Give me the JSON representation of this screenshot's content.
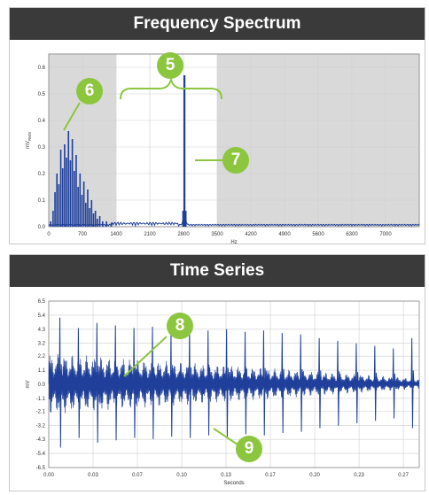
{
  "freq_panel": {
    "title": "Frequency Spectrum"
  },
  "time_panel": {
    "title": "Time Series"
  },
  "callouts": [
    {
      "id": "5",
      "label": "5"
    },
    {
      "id": "6",
      "label": "6"
    },
    {
      "id": "7",
      "label": "7"
    },
    {
      "id": "8",
      "label": "8"
    },
    {
      "id": "9",
      "label": "9"
    }
  ],
  "colors": {
    "header": "#3a3a3a",
    "trace": "#1f3f9a",
    "callout": "#8cc63f",
    "shade": "#d9d9d9"
  },
  "chart_data": [
    {
      "type": "line",
      "title": "Frequency Spectrum",
      "xlabel": "Hz",
      "ylabel": "mVₓₘₛ",
      "ylabel_main": "mV",
      "ylabel_sub": "RMS",
      "xlim": [
        0,
        7700
      ],
      "ylim": [
        0,
        0.65
      ],
      "xticks": [
        "0",
        "700",
        "1400",
        "2100",
        "2800",
        "3500",
        "4200",
        "4900",
        "5600",
        "6300",
        "7000"
      ],
      "xtick_values": [
        0,
        700,
        1400,
        2100,
        2800,
        3500,
        4200,
        4900,
        5600,
        6300,
        7000
      ],
      "yticks": [
        "0.0",
        "0.1",
        "0.2",
        "0.3",
        "0.4",
        "0.5",
        "0.6"
      ],
      "ytick_values": [
        0,
        0.1,
        0.2,
        0.3,
        0.4,
        0.5,
        0.6
      ],
      "shaded_ranges": [
        [
          0,
          1400
        ],
        [
          3500,
          7700
        ]
      ],
      "grid": true,
      "peaks": [
        {
          "x": 40,
          "y": 0.02
        },
        {
          "x": 90,
          "y": 0.06
        },
        {
          "x": 130,
          "y": 0.13
        },
        {
          "x": 170,
          "y": 0.2
        },
        {
          "x": 210,
          "y": 0.16
        },
        {
          "x": 250,
          "y": 0.29
        },
        {
          "x": 290,
          "y": 0.22
        },
        {
          "x": 330,
          "y": 0.31
        },
        {
          "x": 370,
          "y": 0.26
        },
        {
          "x": 410,
          "y": 0.36
        },
        {
          "x": 450,
          "y": 0.25
        },
        {
          "x": 490,
          "y": 0.33
        },
        {
          "x": 530,
          "y": 0.21
        },
        {
          "x": 570,
          "y": 0.27
        },
        {
          "x": 610,
          "y": 0.15
        },
        {
          "x": 650,
          "y": 0.2
        },
        {
          "x": 690,
          "y": 0.12
        },
        {
          "x": 730,
          "y": 0.17
        },
        {
          "x": 770,
          "y": 0.09
        },
        {
          "x": 810,
          "y": 0.14
        },
        {
          "x": 850,
          "y": 0.07
        },
        {
          "x": 890,
          "y": 0.1
        },
        {
          "x": 930,
          "y": 0.05
        },
        {
          "x": 970,
          "y": 0.06
        },
        {
          "x": 1010,
          "y": 0.03
        },
        {
          "x": 1060,
          "y": 0.04
        },
        {
          "x": 1120,
          "y": 0.02
        },
        {
          "x": 1200,
          "y": 0.02
        },
        {
          "x": 1300,
          "y": 0.015
        },
        {
          "x": 2820,
          "y": 0.57
        },
        {
          "x": 2790,
          "y": 0.06
        },
        {
          "x": 2850,
          "y": 0.06
        }
      ]
    },
    {
      "type": "line",
      "title": "Time Series",
      "xlabel": "Seconds",
      "ylabel": "mV",
      "xlim": [
        0,
        0.28
      ],
      "ylim": [
        -6.5,
        6.5
      ],
      "xticks": [
        "0.00",
        "0.03",
        "0.07",
        "0.10",
        "0.13",
        "0.17",
        "0.20",
        "0.23",
        "0.27"
      ],
      "xtick_values": [
        0.0,
        0.0335,
        0.067,
        0.1005,
        0.134,
        0.1675,
        0.201,
        0.2345,
        0.268
      ],
      "yticks": [
        "6.5",
        "5.4",
        "4.3",
        "3.2",
        "2.2",
        "1.1",
        "0.0",
        "-1.1",
        "-2.1",
        "-3.2",
        "-4.3",
        "-5.4",
        "-6.5"
      ],
      "ytick_values": [
        6.5,
        5.4,
        4.3,
        3.2,
        2.2,
        1.1,
        0.0,
        -1.1,
        -2.1,
        -3.2,
        -4.3,
        -5.4,
        -6.5
      ],
      "grid": true,
      "impact_times": [
        0.008,
        0.022,
        0.036,
        0.05,
        0.064,
        0.078,
        0.092,
        0.106,
        0.12,
        0.134,
        0.148,
        0.162,
        0.176,
        0.19,
        0.204,
        0.218,
        0.232,
        0.246,
        0.26,
        0.274
      ],
      "impact_amplitudes": [
        5.2,
        4.4,
        4.8,
        4.6,
        4.4,
        4.5,
        4.3,
        4.4,
        4.2,
        4.3,
        4.1,
        4.2,
        4.0,
        3.9,
        3.6,
        3.4,
        3.2,
        3.0,
        2.8,
        3.6
      ],
      "vibration_envelope_start": 2.4,
      "vibration_envelope_end": 0.4
    }
  ]
}
